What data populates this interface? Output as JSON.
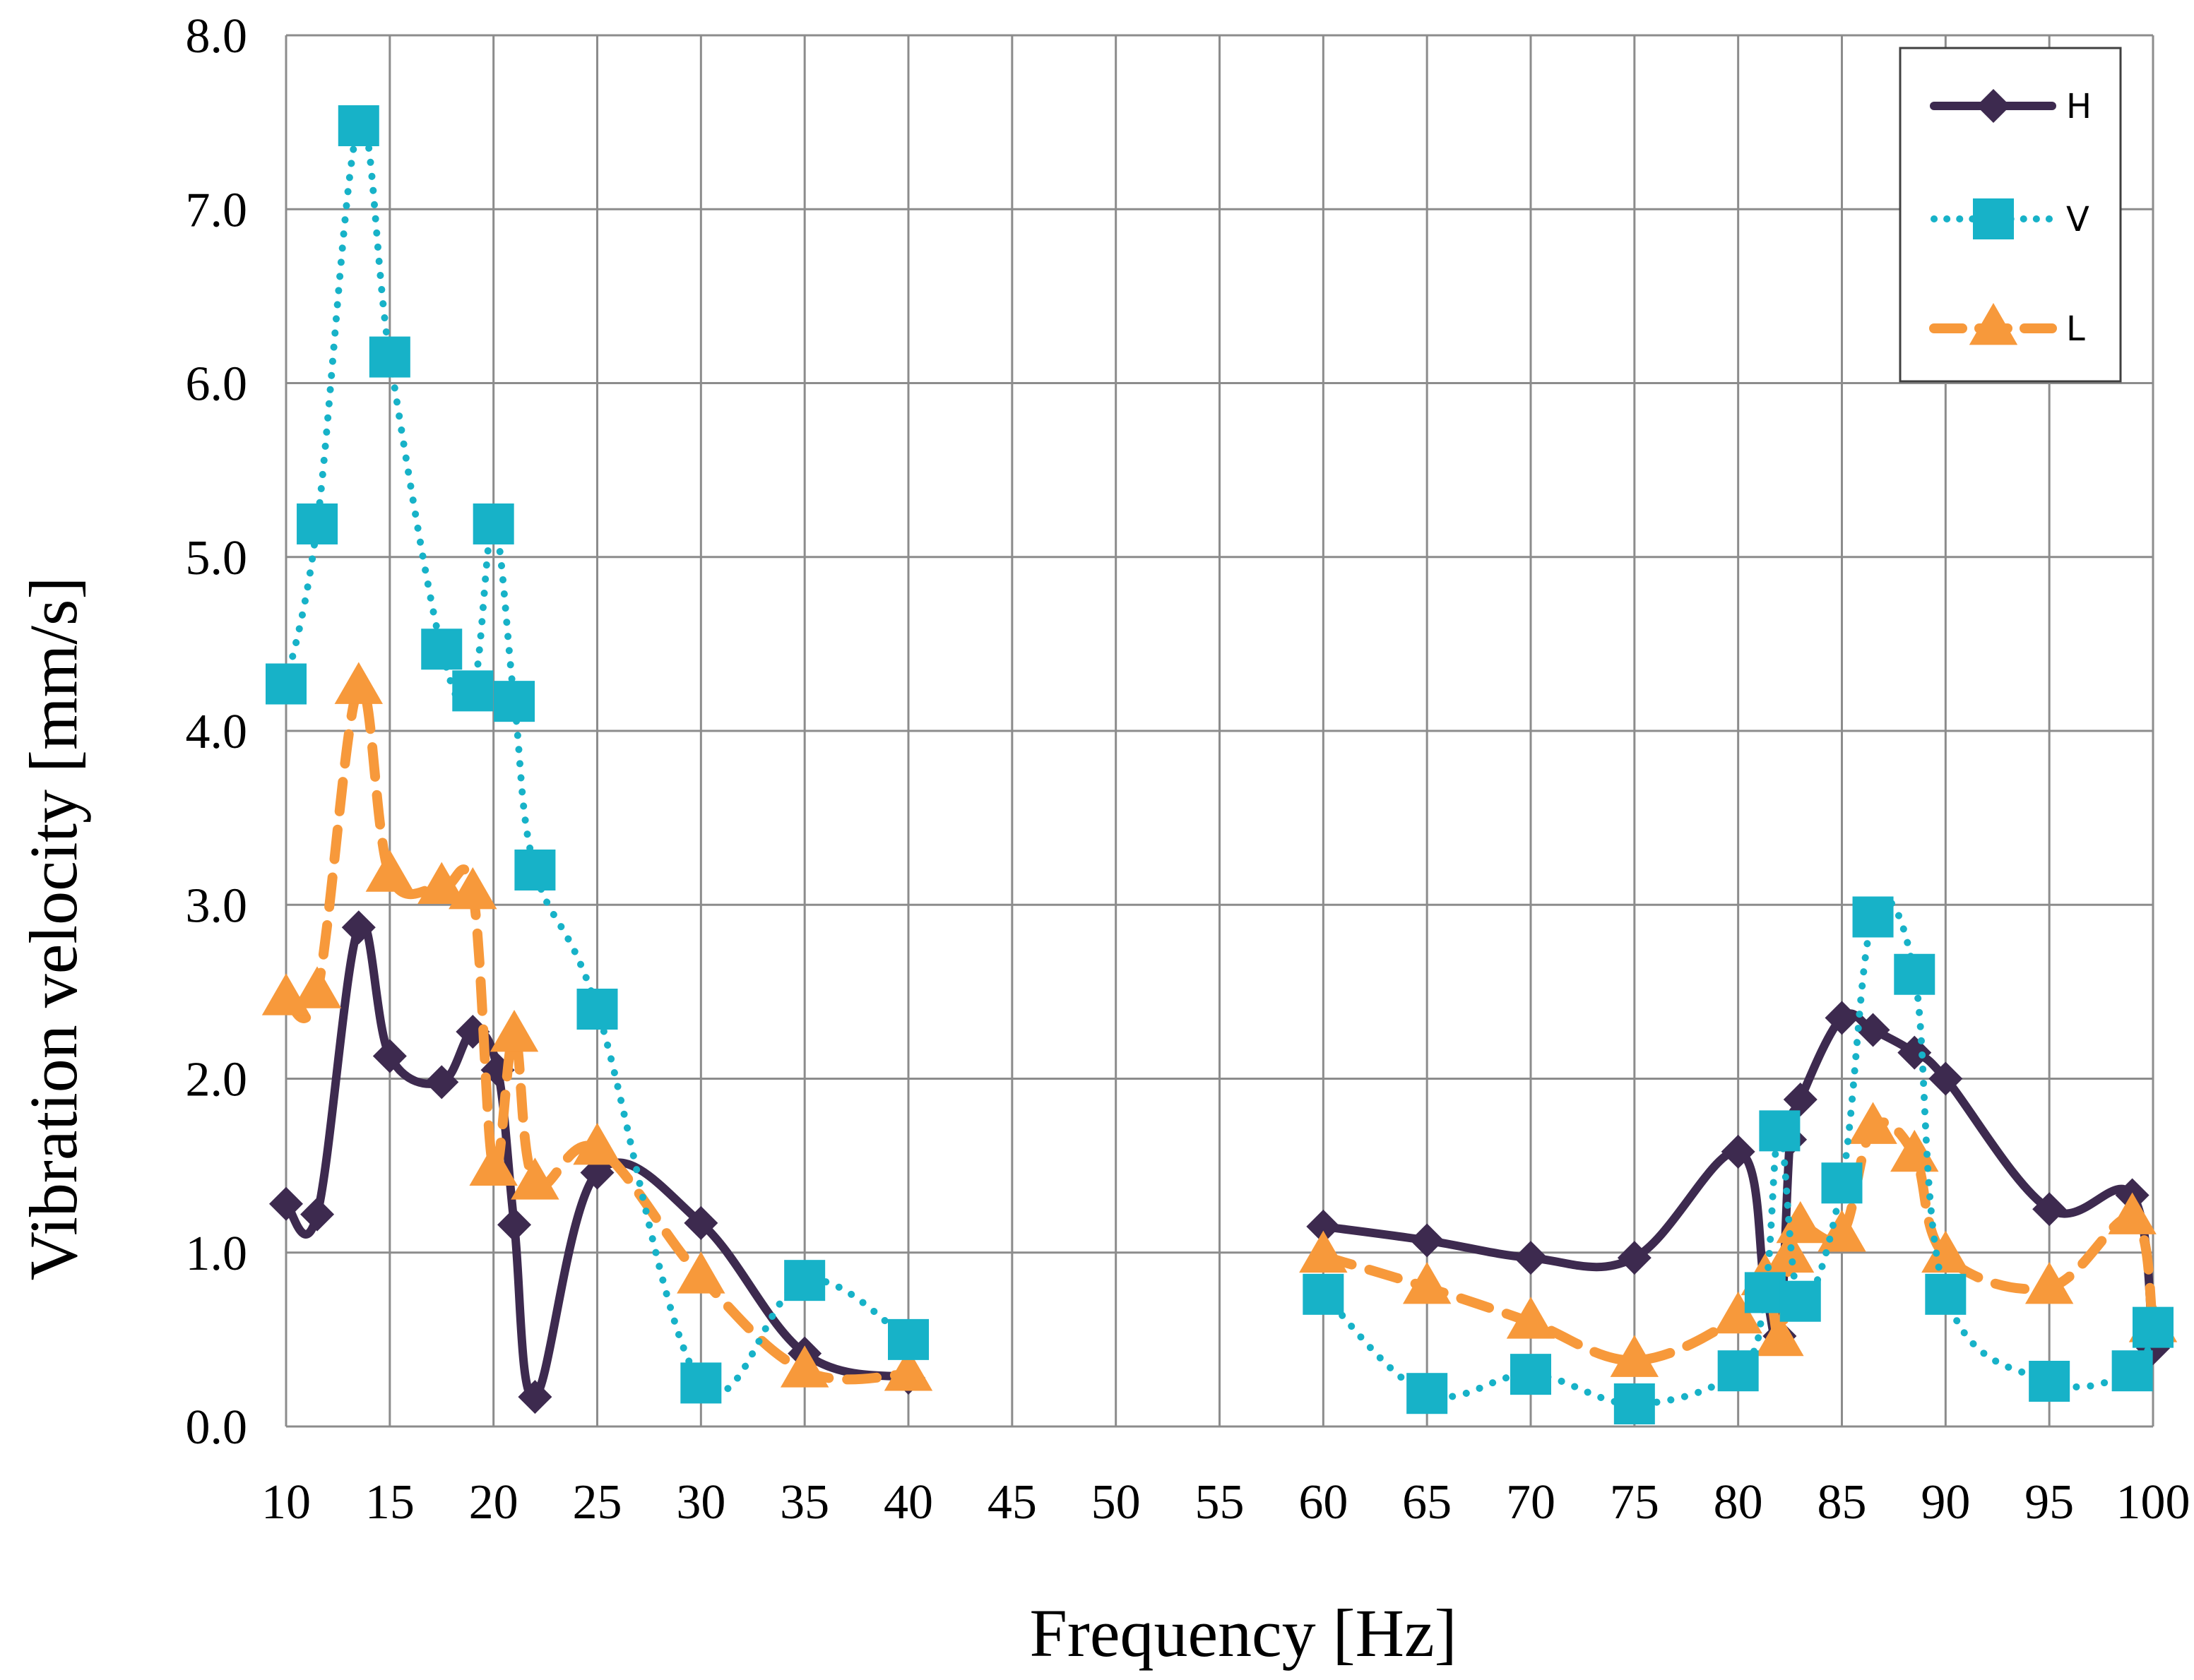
{
  "chart_data": {
    "type": "line",
    "title": "",
    "xlabel": "Frequency [Hz]",
    "ylabel": "Vibration velocity [mm/s]",
    "x_ticks": [
      "10",
      "15",
      "20",
      "25",
      "30",
      "35",
      "40",
      "45",
      "50",
      "55",
      "60",
      "65",
      "70",
      "75",
      "80",
      "85",
      "90",
      "95",
      "100"
    ],
    "y_ticks": [
      "0.0",
      "1.0",
      "2.0",
      "3.0",
      "4.0",
      "5.0",
      "6.0",
      "7.0",
      "8.0"
    ],
    "ylim": [
      0,
      8
    ],
    "grid": true,
    "legend_position": "top-right",
    "series": [
      {
        "name": "H",
        "color": "#3d2a4f",
        "style": "solid",
        "marker": "diamond",
        "segments": [
          [
            [
              10,
              1.28
            ],
            [
              11.5,
              1.22
            ],
            [
              13.5,
              2.87
            ],
            [
              15,
              2.13
            ],
            [
              17.5,
              1.98
            ],
            [
              19,
              2.27
            ],
            [
              20.2,
              2.05
            ],
            [
              21,
              1.16
            ],
            [
              22,
              0.17
            ],
            [
              25,
              1.46
            ],
            [
              30,
              1.17
            ],
            [
              35,
              0.42
            ],
            [
              40,
              0.28
            ]
          ],
          [
            [
              60,
              1.15
            ],
            [
              65,
              1.07
            ],
            [
              70,
              0.97
            ],
            [
              75,
              0.97
            ],
            [
              80,
              1.58
            ],
            [
              81.3,
              0.8
            ],
            [
              82,
              0.52
            ],
            [
              82.5,
              1.65
            ],
            [
              83,
              1.88
            ],
            [
              85,
              2.35
            ],
            [
              86.5,
              2.28
            ],
            [
              88.5,
              2.15
            ],
            [
              90,
              2.0
            ],
            [
              95,
              1.25
            ],
            [
              99,
              1.33
            ],
            [
              100,
              0.45
            ]
          ]
        ]
      },
      {
        "name": "V",
        "color": "#17b2c8",
        "style": "dotted",
        "marker": "square",
        "segments": [
          [
            [
              10,
              4.27
            ],
            [
              11.5,
              5.19
            ],
            [
              13.5,
              7.48
            ],
            [
              15,
              6.15
            ],
            [
              17.5,
              4.47
            ],
            [
              19,
              4.23
            ],
            [
              20,
              5.19
            ],
            [
              21,
              4.17
            ],
            [
              22,
              3.2
            ],
            [
              25,
              2.4
            ],
            [
              30,
              0.25
            ],
            [
              35,
              0.84
            ],
            [
              40,
              0.5
            ]
          ],
          [
            [
              60,
              0.76
            ],
            [
              65,
              0.19
            ],
            [
              70,
              0.3
            ],
            [
              75,
              0.13
            ],
            [
              80,
              0.32
            ],
            [
              81.3,
              0.77
            ],
            [
              82,
              1.7
            ],
            [
              83,
              0.72
            ],
            [
              85,
              1.4
            ],
            [
              86.5,
              2.93
            ],
            [
              88.5,
              2.6
            ],
            [
              90,
              0.76
            ],
            [
              95,
              0.26
            ],
            [
              99,
              0.32
            ],
            [
              100,
              0.57
            ]
          ]
        ]
      },
      {
        "name": "L",
        "color": "#f7993b",
        "style": "dashed",
        "marker": "triangle",
        "segments": [
          [
            [
              10,
              2.46
            ],
            [
              11.5,
              2.5
            ],
            [
              13.5,
              4.25
            ],
            [
              15,
              3.17
            ],
            [
              17.5,
              3.1
            ],
            [
              19,
              3.07
            ],
            [
              20,
              1.48
            ],
            [
              21,
              2.25
            ],
            [
              22,
              1.4
            ],
            [
              25,
              1.6
            ],
            [
              30,
              0.86
            ],
            [
              35,
              0.32
            ],
            [
              40,
              0.3
            ]
          ],
          [
            [
              60,
              0.98
            ],
            [
              65,
              0.8
            ],
            [
              70,
              0.6
            ],
            [
              75,
              0.38
            ],
            [
              80,
              0.63
            ],
            [
              81.3,
              0.85
            ],
            [
              82,
              0.5
            ],
            [
              82.5,
              0.98
            ],
            [
              83,
              1.15
            ],
            [
              85,
              1.1
            ],
            [
              86.5,
              1.72
            ],
            [
              88.5,
              1.56
            ],
            [
              90,
              0.98
            ],
            [
              95,
              0.8
            ],
            [
              99,
              1.2
            ],
            [
              100,
              0.58
            ]
          ]
        ]
      }
    ]
  }
}
